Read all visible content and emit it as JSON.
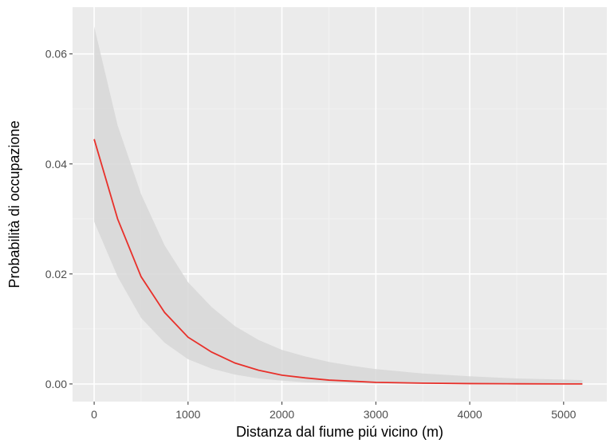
{
  "chart_data": {
    "type": "line",
    "title": "",
    "xlabel": "Distanza dal fiume piú vicino (m)",
    "ylabel": "Probabilità di occupazione",
    "xlim": [
      -230,
      5460
    ],
    "ylim": [
      -0.0032,
      0.0685
    ],
    "x_ticks": [
      0,
      1000,
      2000,
      3000,
      4000,
      5000
    ],
    "x_tick_labels": [
      "0",
      "1000",
      "2000",
      "3000",
      "4000",
      "5000"
    ],
    "y_ticks": [
      0.0,
      0.02,
      0.04,
      0.06
    ],
    "y_tick_labels": [
      "0.00",
      "0.02",
      "0.04",
      "0.06"
    ],
    "grid": true,
    "legend": "none",
    "series": [
      {
        "x": [
          0,
          250,
          500,
          750,
          1000,
          1250,
          1500,
          1750,
          2000,
          2250,
          2500,
          2750,
          3000,
          3500,
          4000,
          4500,
          5000,
          5200
        ],
        "y": [
          0.0445,
          0.03,
          0.0195,
          0.013,
          0.0085,
          0.0058,
          0.0038,
          0.0025,
          0.0016,
          0.0011,
          0.0007,
          0.0005,
          0.0003,
          0.00015,
          7e-05,
          3e-05,
          1e-05,
          1e-05
        ],
        "lower": [
          0.0295,
          0.0195,
          0.012,
          0.0075,
          0.0045,
          0.0028,
          0.0017,
          0.001,
          0.0006,
          0.0003,
          0.0002,
          0.0001,
          5e-05,
          2e-05,
          1e-05,
          0.0,
          0.0,
          0.0
        ],
        "upper": [
          0.065,
          0.047,
          0.0345,
          0.0252,
          0.0185,
          0.014,
          0.0105,
          0.008,
          0.0062,
          0.005,
          0.004,
          0.0033,
          0.0027,
          0.0019,
          0.0014,
          0.001,
          0.0008,
          0.0007
        ]
      }
    ],
    "colors": {
      "panel": "#ebebeb",
      "grid_major": "#ffffff",
      "grid_minor": "#f4f4f4",
      "line": "#e8302a",
      "ribbon": "#d7d7d7",
      "tick": "#333333"
    }
  }
}
